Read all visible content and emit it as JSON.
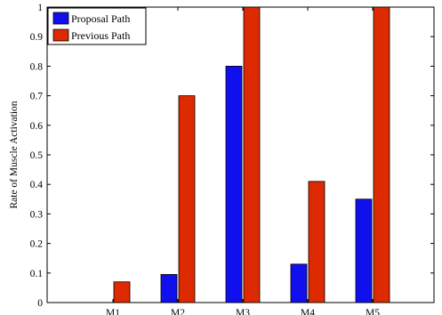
{
  "chart_data": {
    "type": "bar",
    "categories": [
      "M1",
      "M2",
      "M3",
      "M4",
      "M5"
    ],
    "series": [
      {
        "name": "Proposal Path",
        "values": [
          0,
          0.095,
          0.8,
          0.13,
          0.35
        ],
        "color": "#1010ee"
      },
      {
        "name": "Previous Path",
        "values": [
          0.07,
          0.7,
          1.0,
          0.41,
          1.0
        ],
        "color": "#dd2a00"
      }
    ],
    "title": "",
    "xlabel": "",
    "ylabel": "Rate of Muscle Activation",
    "ylim": [
      0,
      1
    ],
    "yticks": [
      "0",
      "0.1",
      "0.2",
      "0.3",
      "0.4",
      "0.5",
      "0.6",
      "0.7",
      "0.8",
      "0.9",
      "1"
    ],
    "ytick_values": [
      0,
      0.1,
      0.2,
      0.3,
      0.4,
      0.5,
      0.6,
      0.7,
      0.8,
      0.9,
      1
    ],
    "grid": false,
    "legend_position": "top-left"
  }
}
